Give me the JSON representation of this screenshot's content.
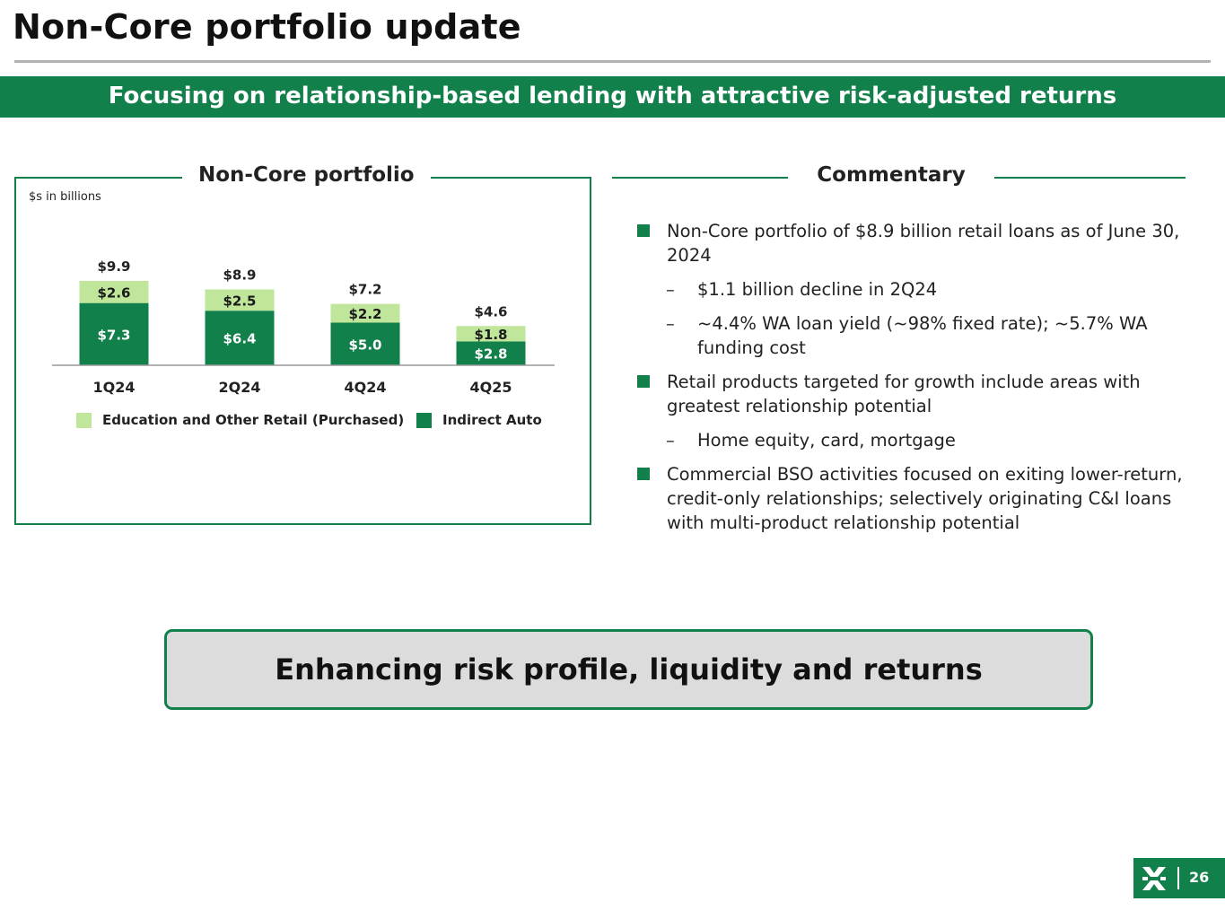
{
  "page_title": "Non-Core portfolio update",
  "banner": "Focusing on relationship-based lending with attractive risk-adjusted returns",
  "chart_panel": {
    "title": "Non-Core portfolio",
    "units": "$s in billions"
  },
  "chart_data": {
    "type": "bar",
    "stacked": true,
    "title": "Non-Core portfolio",
    "units": "$s in billions",
    "categories": [
      "1Q24",
      "2Q24",
      "4Q24",
      "4Q25"
    ],
    "series": [
      {
        "name": "Indirect Auto",
        "values": [
          7.3,
          6.4,
          5.0,
          2.8
        ],
        "labels": [
          "$7.3",
          "$6.4",
          "$5.0",
          "$2.8"
        ],
        "color": "#12804b"
      },
      {
        "name": "Education and Other Retail (Purchased)",
        "values": [
          2.6,
          2.5,
          2.2,
          1.8
        ],
        "labels": [
          "$2.6",
          "$2.5",
          "$2.2",
          "$1.8"
        ],
        "color": "#bfe69a"
      }
    ],
    "totals": [
      9.9,
      8.9,
      7.2,
      4.6
    ],
    "total_labels": [
      "$9.9",
      "$8.9",
      "$7.2",
      "$4.6"
    ],
    "legend": [
      {
        "label": "Education and Other Retail (Purchased)",
        "color": "#bfe69a"
      },
      {
        "label": "Indirect Auto",
        "color": "#12804b"
      }
    ],
    "legend_position": "bottom"
  },
  "commentary": {
    "title": "Commentary",
    "bullets": [
      {
        "text": "Non-Core portfolio of $8.9 billion retail loans as of June 30, 2024",
        "subs": [
          "$1.1 billion decline in 2Q24",
          "~4.4% WA loan yield (~98% fixed rate); ~5.7% WA funding cost"
        ]
      },
      {
        "text": "Retail products targeted for growth include areas with greatest relationship potential",
        "subs": [
          "Home equity, card, mortgage"
        ]
      },
      {
        "text": "Commercial BSO activities focused on exiting lower-return, credit-only relationships; selectively originating C&I loans with multi-product relationship potential",
        "subs": []
      }
    ]
  },
  "callout": "Enhancing risk profile, liquidity and returns",
  "footer": {
    "page_number": "26",
    "logo_icon": "brand-logo-icon"
  },
  "colors": {
    "brand_green": "#12804b",
    "light_green": "#bfe69a",
    "callout_bg": "#dcdcdc"
  }
}
